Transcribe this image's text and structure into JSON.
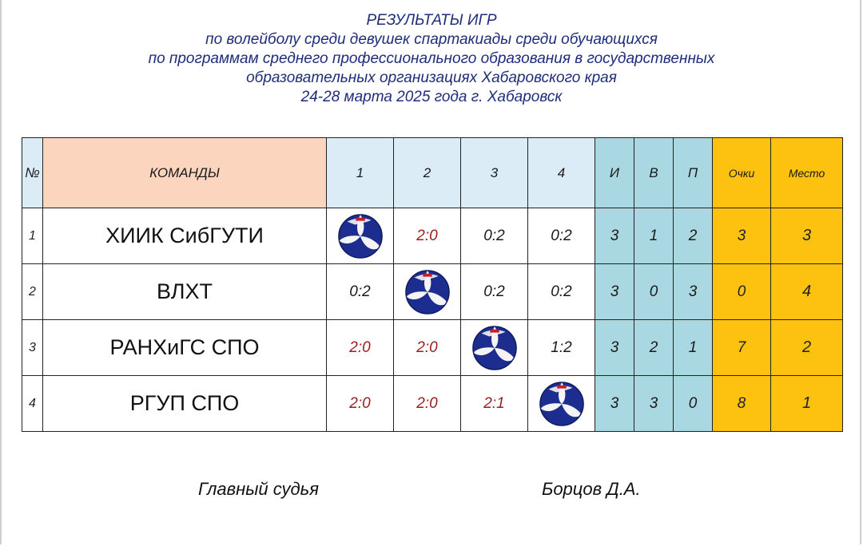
{
  "header": {
    "line1": "РЕЗУЛЬТАТЫ ИГР",
    "line2": "по волейболу среди девушек спартакиады среди обучающихся",
    "line3": "по программам среднего профессионального образования в государственных",
    "line4": "образовательных организациях Хабаровского края",
    "line5": "24-28 марта 2025 года  г. Хабаровск"
  },
  "table": {
    "columns": {
      "num": "№",
      "team": "КОМАНДЫ",
      "g1": "1",
      "g2": "2",
      "g3": "3",
      "g4": "4",
      "played": "И",
      "won": "В",
      "lost": "П",
      "points": "Очки",
      "place": "Место"
    },
    "rows": [
      {
        "num": "1",
        "team": "ХИИК СибГУТИ",
        "g1": "",
        "g2": "2:0",
        "g3": "0:2",
        "g4": "0:2",
        "played": "3",
        "won": "1",
        "lost": "2",
        "points": "3",
        "place": "3"
      },
      {
        "num": "2",
        "team": "ВЛХТ",
        "g1": "0:2",
        "g2": "",
        "g3": "0:2",
        "g4": "0:2",
        "played": "3",
        "won": "0",
        "lost": "3",
        "points": "0",
        "place": "4"
      },
      {
        "num": "3",
        "team": "РАНХиГС СПО",
        "g1": "2:0",
        "g2": "2:0",
        "g3": "",
        "g4": "1:2",
        "played": "3",
        "won": "2",
        "lost": "1",
        "points": "7",
        "place": "2"
      },
      {
        "num": "4",
        "team": "РГУП СПО",
        "g1": "2:0",
        "g2": "2:0",
        "g3": "2:1",
        "g4": "",
        "played": "3",
        "won": "3",
        "lost": "0",
        "points": "8",
        "place": "1"
      }
    ]
  },
  "colors": {
    "title": "#1e2d7a",
    "win_score": "#9b1c1c",
    "team_header_bg": "#fbd5bd",
    "game_header_bg": "#dcecf6",
    "stat_bg": "#a9d8e2",
    "gold_bg": "#fdc20f"
  },
  "icons": {
    "diagonal_cell": "volleyball-icon"
  },
  "footer": {
    "judge_label": "Главный судья",
    "judge_name": "Борцов Д.А."
  }
}
